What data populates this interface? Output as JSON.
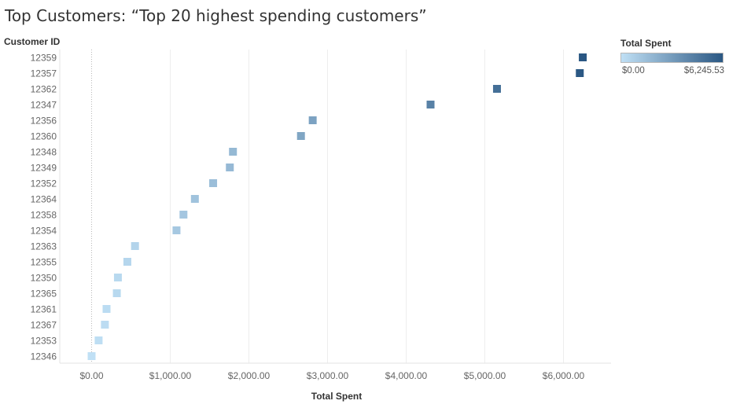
{
  "title": "Top Customers: “Top 20 highest spending customers”",
  "chart_data": {
    "type": "scatter",
    "title": "Top Customers: “Top 20 highest spending customers”",
    "ylabel": "Customer ID",
    "xlabel": "Total Spent",
    "categories": [
      "12359",
      "12357",
      "12362",
      "12347",
      "12356",
      "12360",
      "12348",
      "12349",
      "12352",
      "12364",
      "12358",
      "12354",
      "12363",
      "12355",
      "12350",
      "12365",
      "12361",
      "12367",
      "12353",
      "12346"
    ],
    "values": [
      6245.53,
      6207.67,
      5154.58,
      4310.0,
      2811.43,
      2662.06,
      1797.24,
      1757.55,
      1545.41,
      1313.1,
      1168.06,
      1079.4,
      552.0,
      454.48,
      334.4,
      320.69,
      189.9,
      168.9,
      89.0,
      0.0
    ],
    "xlim": [
      -400,
      6600
    ],
    "xticks": [
      0,
      1000,
      2000,
      3000,
      4000,
      5000,
      6000
    ],
    "xtick_labels": [
      "$0.00",
      "$1,000.00",
      "$2,000.00",
      "$3,000.00",
      "$4,000.00",
      "$5,000.00",
      "$6,000.00"
    ],
    "grid": "vertical",
    "legend": {
      "title": "Total Spent",
      "placement": "top-right",
      "min_label": "$0.00",
      "max_label": "$6,245.53",
      "min_value": 0,
      "max_value": 6245.53,
      "color_low": "#c0e0f5",
      "color_high": "#2a5783"
    }
  }
}
